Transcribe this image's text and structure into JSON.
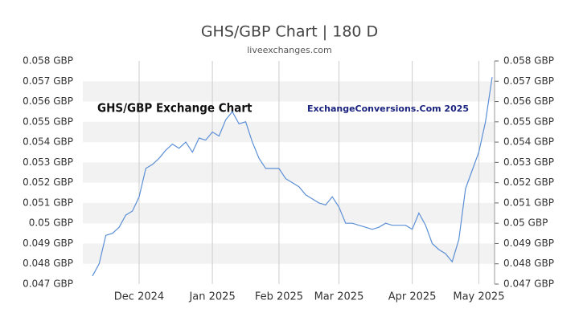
{
  "chart_data": {
    "type": "line",
    "title": "GHS/GBP Chart | 180 D",
    "subtitle": "liveexchanges.com",
    "annotations": [
      "GHS/GBP Exchange Chart",
      "ExchangeConversions.Com 2025"
    ],
    "categories": [
      null,
      null,
      null,
      null,
      null,
      null,
      null,
      "Dec 2024",
      null,
      null,
      null,
      null,
      null,
      null,
      null,
      null,
      null,
      null,
      "Jan 2025",
      null,
      null,
      null,
      null,
      null,
      null,
      null,
      null,
      null,
      "Feb 2025",
      null,
      null,
      null,
      null,
      null,
      null,
      null,
      null,
      "Mar 2025",
      null,
      null,
      null,
      null,
      null,
      null,
      null,
      null,
      null,
      null,
      "Apr 2025",
      null,
      null,
      null,
      null,
      null,
      null,
      null,
      null,
      null,
      "May 2025",
      null,
      null
    ],
    "series": [
      {
        "name": "GHS/GBP",
        "color": "#5b8fd6",
        "values": [
          0.0474,
          0.048,
          0.0494,
          0.0495,
          0.0498,
          0.0504,
          0.0506,
          0.0513,
          0.0527,
          0.0529,
          0.0532,
          0.0536,
          0.0539,
          0.0537,
          0.054,
          0.0535,
          0.0542,
          0.0541,
          0.0545,
          0.0543,
          0.0551,
          0.0555,
          0.0549,
          0.055,
          0.054,
          0.0532,
          0.0527,
          0.0527,
          0.0527,
          0.0522,
          0.052,
          0.0518,
          0.0514,
          0.0512,
          0.051,
          0.0509,
          0.0513,
          0.0508,
          0.05,
          0.05,
          0.0499,
          0.0498,
          0.0497,
          0.0498,
          0.05,
          0.0499,
          0.0499,
          0.0499,
          0.0497,
          0.0505,
          0.0499,
          0.049,
          0.0487,
          0.0485,
          0.0481,
          0.0492,
          0.0517,
          0.0526,
          0.0535,
          0.055,
          0.0572
        ]
      }
    ],
    "ylim": [
      0.047,
      0.058
    ],
    "yticks": [
      {
        "value": 0.058,
        "label": "0.058 GBP"
      },
      {
        "value": 0.057,
        "label": "0.057 GBP"
      },
      {
        "value": 0.056,
        "label": "0.056 GBP"
      },
      {
        "value": 0.055,
        "label": "0.055 GBP"
      },
      {
        "value": 0.054,
        "label": "0.054 GBP"
      },
      {
        "value": 0.053,
        "label": "0.053 GBP"
      },
      {
        "value": 0.052,
        "label": "0.052 GBP"
      },
      {
        "value": 0.051,
        "label": "0.051 GBP"
      },
      {
        "value": 0.05,
        "label": "0.05 GBP"
      },
      {
        "value": 0.049,
        "label": "0.049 GBP"
      },
      {
        "value": 0.048,
        "label": "0.048 GBP"
      },
      {
        "value": 0.047,
        "label": "0.047 GBP"
      }
    ],
    "grid": true
  }
}
